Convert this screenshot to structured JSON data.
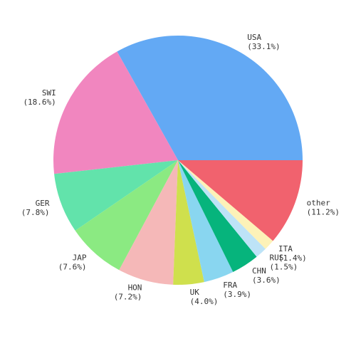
{
  "chart_data": {
    "type": "pie",
    "categories": [
      "USA",
      "SWI",
      "GER",
      "JAP",
      "HON",
      "UK",
      "FRA",
      "CHN",
      "RUS",
      "ITA",
      "other"
    ],
    "values": [
      33.1,
      18.6,
      7.8,
      7.6,
      7.2,
      4.0,
      3.9,
      3.6,
      1.5,
      1.4,
      11.2
    ],
    "value_labels": [
      "(33.1%)",
      "(18.6%)",
      "(7.8%)",
      "(7.6%)",
      "(7.2%)",
      "(4.0%)",
      "(3.9%)",
      "(3.6%)",
      "(1.5%)",
      "(1.4%)",
      "(11.2%)"
    ],
    "colors": [
      "#63a9f4",
      "#f186bf",
      "#62e3ab",
      "#8bea82",
      "#f5b8b8",
      "#cfe04d",
      "#89d6f0",
      "#06b47c",
      "#bde3f7",
      "#fdf2b8",
      "#f1626e"
    ]
  }
}
